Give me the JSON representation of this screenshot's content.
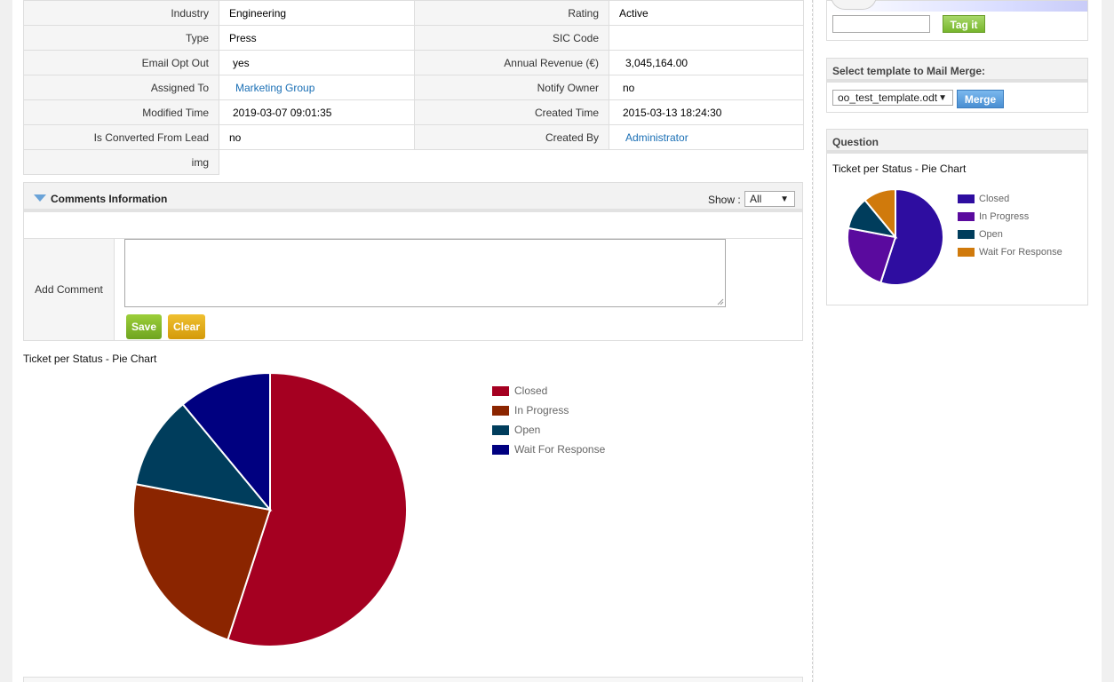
{
  "details": {
    "rows": [
      {
        "l1": "Industry",
        "v1": "Engineering",
        "l2": "Rating",
        "v2": "Active"
      },
      {
        "l1": "Type",
        "v1": "Press",
        "l2": "SIC Code",
        "v2": ""
      },
      {
        "l1": "Email Opt Out",
        "v1": "yes",
        "l2": "Annual Revenue (€)",
        "v2": "3,045,164.00"
      },
      {
        "l1": "Assigned To",
        "v1": "Marketing Group",
        "l2": "Notify Owner",
        "v2": "no"
      },
      {
        "l1": "Modified Time",
        "v1": "2019-03-07 09:01:35",
        "l2": "Created Time",
        "v2": "2015-03-13 18:24:30"
      },
      {
        "l1": "Is Converted From Lead",
        "v1": "no",
        "l2": "Created By",
        "v2": "Administrator"
      },
      {
        "l1": "img",
        "v1": "",
        "l2": "",
        "v2": ""
      }
    ]
  },
  "comments": {
    "title": "Comments Information",
    "show_label": "Show :",
    "show_value": "All",
    "add_label": "Add Comment",
    "save_label": "Save",
    "clear_label": "Clear"
  },
  "tag_widget": {
    "button_label": "Tag it"
  },
  "merge_widget": {
    "title": "Select template to Mail Merge:",
    "template_value": "oo_test_template.odt",
    "button_label": "Merge"
  },
  "question_widget": {
    "title": "Question"
  },
  "chart_data": [
    {
      "type": "pie",
      "title": "Ticket per Status - Pie Chart",
      "categories": [
        "Closed",
        "In Progress",
        "Open",
        "Wait For Response"
      ],
      "values": [
        55,
        23,
        11,
        11
      ],
      "colors": [
        "#a50021",
        "#8b2500",
        "#003d5c",
        "#000080"
      ],
      "legend": "right"
    },
    {
      "type": "pie",
      "title": "Ticket per Status - Pie Chart",
      "categories": [
        "Closed",
        "In Progress",
        "Open",
        "Wait For Response"
      ],
      "values": [
        55,
        23,
        11,
        11
      ],
      "colors": [
        "#2e0da0",
        "#5a0a9e",
        "#003d5c",
        "#d07a0c"
      ],
      "legend": "right"
    }
  ]
}
